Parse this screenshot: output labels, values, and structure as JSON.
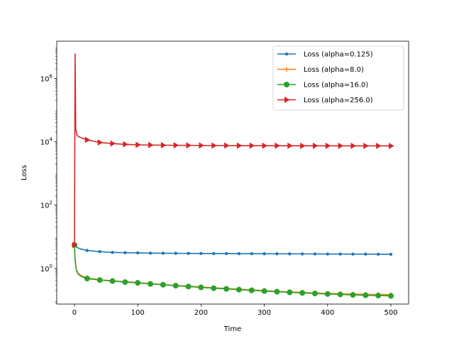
{
  "chart_data": {
    "type": "line",
    "title": "",
    "xlabel": "Time",
    "ylabel": "Loss",
    "y_scale": "log",
    "xlim": [
      -28,
      528
    ],
    "ylim": [
      0.075,
      15000000
    ],
    "x_ticks": [
      0,
      100,
      200,
      300,
      400,
      500
    ],
    "x_tick_labels": [
      "0",
      "100",
      "200",
      "300",
      "400",
      "500"
    ],
    "y_ticks": [
      1,
      100,
      10000,
      1000000
    ],
    "y_tick_labels": [
      {
        "base": "10",
        "exp": "0"
      },
      {
        "base": "10",
        "exp": "2"
      },
      {
        "base": "10",
        "exp": "4"
      },
      {
        "base": "10",
        "exp": "6"
      }
    ],
    "grid": false,
    "legend_position": "top-right",
    "series": [
      {
        "name": "Loss (alpha=0.125)",
        "color": "#1f77b4",
        "marker": "dot",
        "x": [
          0,
          1,
          3,
          6,
          10,
          20,
          40,
          60,
          80,
          100,
          120,
          140,
          160,
          180,
          200,
          220,
          240,
          260,
          280,
          300,
          320,
          340,
          360,
          380,
          400,
          420,
          440,
          460,
          480,
          500
        ],
        "y": [
          5.5,
          5.2,
          4.8,
          4.4,
          4.1,
          3.7,
          3.4,
          3.2,
          3.15,
          3.1,
          3.05,
          3.02,
          3.0,
          2.98,
          2.97,
          2.95,
          2.94,
          2.93,
          2.92,
          2.91,
          2.9,
          2.89,
          2.88,
          2.87,
          2.86,
          2.85,
          2.84,
          2.83,
          2.82,
          2.8
        ]
      },
      {
        "name": "Loss (alpha=8.0)",
        "color": "#ff7f0e",
        "marker": "plus",
        "x": [
          0,
          1,
          3,
          6,
          10,
          20,
          40,
          60,
          80,
          100,
          120,
          140,
          160,
          180,
          200,
          220,
          240,
          260,
          280,
          300,
          320,
          340,
          360,
          380,
          400,
          420,
          440,
          460,
          480,
          500
        ],
        "y": [
          5.5,
          2.0,
          0.9,
          0.7,
          0.6,
          0.5,
          0.44,
          0.41,
          0.38,
          0.36,
          0.33,
          0.31,
          0.29,
          0.275,
          0.26,
          0.245,
          0.233,
          0.222,
          0.212,
          0.2,
          0.19,
          0.182,
          0.175,
          0.168,
          0.162,
          0.158,
          0.155,
          0.152,
          0.15,
          0.148
        ]
      },
      {
        "name": "Loss (alpha=16.0)",
        "color": "#2ca02c",
        "marker": "circle",
        "x": [
          0,
          1,
          3,
          6,
          10,
          20,
          40,
          60,
          80,
          100,
          120,
          140,
          160,
          180,
          200,
          220,
          240,
          260,
          280,
          300,
          320,
          340,
          360,
          380,
          400,
          420,
          440,
          460,
          480,
          500
        ],
        "y": [
          5.5,
          1.8,
          0.85,
          0.66,
          0.57,
          0.48,
          0.43,
          0.4,
          0.37,
          0.35,
          0.325,
          0.305,
          0.285,
          0.268,
          0.252,
          0.238,
          0.226,
          0.214,
          0.203,
          0.193,
          0.184,
          0.176,
          0.169,
          0.162,
          0.156,
          0.151,
          0.146,
          0.142,
          0.139,
          0.136
        ]
      },
      {
        "name": "Loss (alpha=256.0)",
        "color": "#d62728",
        "marker": "triangle-right",
        "x": [
          0,
          1,
          2,
          4,
          8,
          20,
          40,
          60,
          80,
          100,
          120,
          140,
          160,
          180,
          200,
          220,
          240,
          260,
          280,
          300,
          320,
          340,
          360,
          380,
          400,
          420,
          440,
          460,
          480,
          500
        ],
        "y": [
          5.5,
          6000000,
          25000,
          16000,
          14000,
          11500,
          9500,
          8800,
          8300,
          8000,
          7900,
          7800,
          7750,
          7700,
          7650,
          7600,
          7580,
          7560,
          7540,
          7520,
          7500,
          7490,
          7480,
          7470,
          7460,
          7450,
          7440,
          7430,
          7420,
          7400
        ]
      }
    ]
  }
}
